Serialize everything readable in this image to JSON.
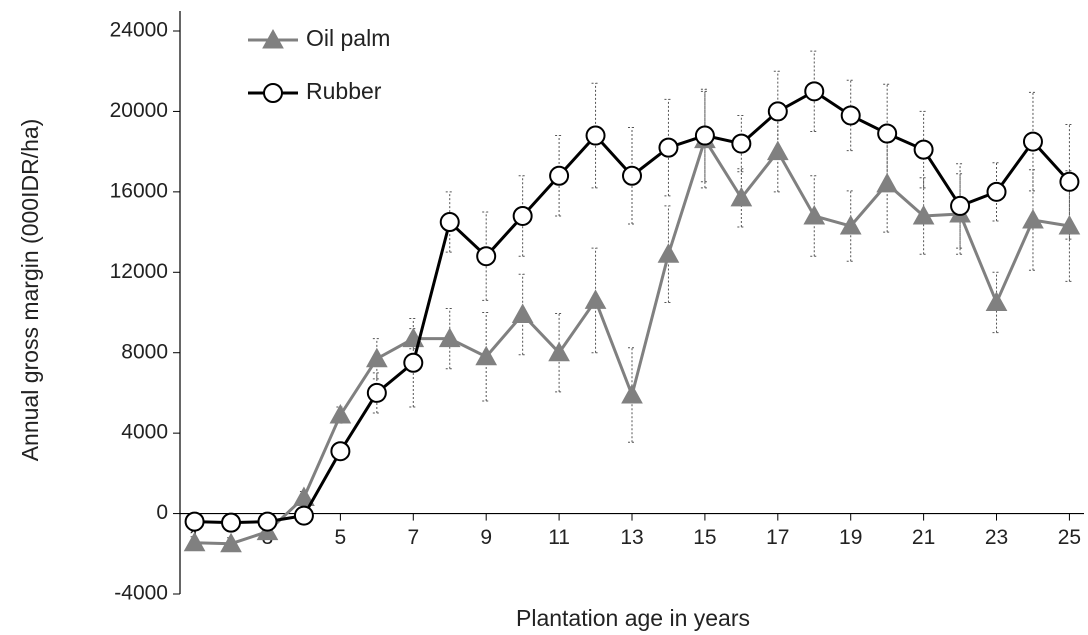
{
  "chart_data": {
    "type": "line",
    "xlabel": "Plantation age in years",
    "ylabel": "Annual gross margin (000IDR/ha)",
    "x": [
      1,
      2,
      3,
      4,
      5,
      6,
      7,
      8,
      9,
      10,
      11,
      12,
      13,
      14,
      15,
      16,
      17,
      18,
      19,
      20,
      21,
      22,
      23,
      24,
      25
    ],
    "series": [
      {
        "name": "Oil palm",
        "color": "#808080",
        "marker": "triangle",
        "values": [
          -1450,
          -1500,
          -900,
          800,
          4900,
          7700,
          8700,
          8700,
          7800,
          9900,
          8000,
          10600,
          5900,
          12900,
          18600,
          15700,
          18000,
          14800,
          14300,
          16400,
          14800,
          14900,
          10500,
          14600,
          14300
        ],
        "errors": [
          300,
          300,
          300,
          300,
          400,
          1000,
          500,
          1500,
          2200,
          2000,
          1950,
          2600,
          2350,
          2400,
          2400,
          1450,
          2000,
          2000,
          1750,
          2400,
          1900,
          2000,
          1500,
          2500,
          2750
        ]
      },
      {
        "name": "Rubber",
        "color": "#000000",
        "marker": "circle",
        "values": [
          -400,
          -450,
          -400,
          -100,
          3100,
          6000,
          7500,
          14500,
          12800,
          14800,
          16800,
          18800,
          16800,
          18200,
          18800,
          18400,
          20000,
          21000,
          19800,
          18900,
          18100,
          15300,
          16000,
          18500,
          16500
        ],
        "errors": [
          200,
          200,
          200,
          200,
          300,
          1000,
          2200,
          1500,
          2200,
          2000,
          2000,
          2600,
          2400,
          2400,
          2300,
          1400,
          2000,
          2000,
          1750,
          2450,
          1900,
          2100,
          1450,
          2450,
          2850
        ]
      }
    ],
    "xlim": [
      0.6,
      25.4
    ],
    "xticks": [
      1,
      3,
      5,
      7,
      9,
      11,
      13,
      15,
      17,
      19,
      21,
      23,
      25
    ],
    "ylim": [
      -4000,
      24000
    ],
    "yticks": [
      -4000,
      0,
      4000,
      8000,
      12000,
      16000,
      20000,
      24000
    ],
    "legend": "upper left"
  }
}
